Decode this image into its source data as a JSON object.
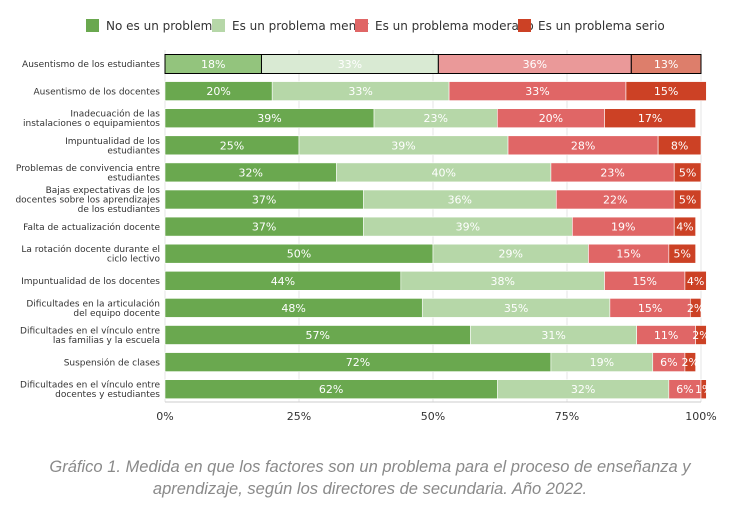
{
  "caption": {
    "line1": "Gráfico 1. Medida en que los factores son un problema para el proceso de enseñanza y",
    "line2": "aprendizaje, según los directores de secundaria. Año 2022."
  },
  "chart_data": {
    "type": "bar",
    "orientation": "horizontal",
    "stacked": true,
    "legend_position": "top",
    "grid": true,
    "xlim": [
      0,
      100
    ],
    "x_ticks": [
      "0%",
      "25%",
      "50%",
      "75%",
      "100%"
    ],
    "colors": [
      "#6aa84f",
      "#b6d7a8",
      "#e06666",
      "#cc4125"
    ],
    "highlight_colors": [
      "#93c47d",
      "#d9ead3",
      "#ea9999",
      "#dd7e6b"
    ],
    "highlighted_category_index": 0,
    "categories": [
      [
        "Ausentismo de los estudiantes"
      ],
      [
        "Ausentismo de los docentes"
      ],
      [
        "Inadecuación de las",
        "instalaciones o equipamientos"
      ],
      [
        "Impuntualidad de los",
        "estudiantes"
      ],
      [
        "Problemas de convivencia entre",
        "estudiantes"
      ],
      [
        "Bajas expectativas de los",
        "docentes sobre los aprendizajes",
        "de los estudiantes"
      ],
      [
        "Falta de actualización docente"
      ],
      [
        "La rotación docente durante el",
        "ciclo lectivo"
      ],
      [
        "Impuntualidad de los docentes"
      ],
      [
        "Dificultades en la articulación",
        "del equipo docente"
      ],
      [
        "Dificultades en el vínculo entre",
        "las familias y la escuela"
      ],
      [
        "Suspensión de clases"
      ],
      [
        "Dificultades en el vínculo entre",
        "docentes y estudiantes"
      ]
    ],
    "series": [
      {
        "name": "No es un problema",
        "values": [
          18,
          20,
          39,
          25,
          32,
          37,
          37,
          50,
          44,
          48,
          57,
          72,
          62
        ]
      },
      {
        "name": "Es un problema menor",
        "values": [
          33,
          33,
          23,
          39,
          40,
          36,
          39,
          29,
          38,
          35,
          31,
          19,
          32
        ]
      },
      {
        "name": "Es un problema moderado",
        "values": [
          36,
          33,
          20,
          28,
          23,
          22,
          19,
          15,
          15,
          15,
          11,
          6,
          6
        ]
      },
      {
        "name": "Es un problema serio",
        "values": [
          13,
          15,
          17,
          8,
          5,
          5,
          4,
          5,
          4,
          2,
          2,
          2,
          1
        ]
      }
    ]
  }
}
